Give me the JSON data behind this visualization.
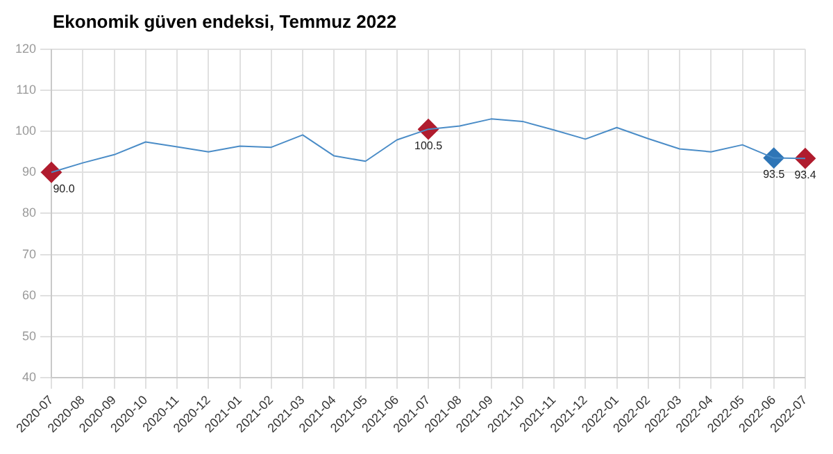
{
  "chart_data": {
    "type": "line",
    "title": "Ekonomik güven endeksi, Temmuz 2022",
    "categories": [
      "2020-07",
      "2020-08",
      "2020-09",
      "2020-10",
      "2020-11",
      "2020-12",
      "2021-01",
      "2021-02",
      "2021-03",
      "2021-04",
      "2021-05",
      "2021-06",
      "2021-07",
      "2021-08",
      "2021-09",
      "2021-10",
      "2021-11",
      "2021-12",
      "2022-01",
      "2022-02",
      "2022-03",
      "2022-04",
      "2022-05",
      "2022-06",
      "2022-07"
    ],
    "series": [
      {
        "color": "#4a8cc7",
        "marker": "none",
        "values": [
          90.0,
          92.3,
          94.3,
          97.4,
          96.2,
          95.0,
          96.4,
          96.1,
          99.1,
          94.0,
          92.7,
          97.9,
          100.5,
          101.3,
          103.0,
          102.4,
          100.3,
          98.1,
          100.9,
          98.2,
          95.7,
          95.0,
          96.7,
          93.5,
          93.4
        ]
      },
      {
        "type": "scatter",
        "marker": "diamond",
        "color": "#b01c2e",
        "values": [
          90.0,
          null,
          null,
          null,
          null,
          null,
          null,
          null,
          null,
          null,
          null,
          null,
          100.5,
          null,
          null,
          null,
          null,
          null,
          null,
          null,
          null,
          null,
          null,
          93.5,
          93.4
        ],
        "colors": [
          "#b01c2e",
          null,
          null,
          null,
          null,
          null,
          null,
          null,
          null,
          null,
          null,
          null,
          "#b01c2e",
          null,
          null,
          null,
          null,
          null,
          null,
          null,
          null,
          null,
          null,
          "#2e75b6",
          "#b01c2e"
        ],
        "value_labels": [
          "90.0",
          null,
          null,
          null,
          null,
          null,
          null,
          null,
          null,
          null,
          null,
          null,
          "100.5",
          null,
          null,
          null,
          null,
          null,
          null,
          null,
          null,
          null,
          null,
          "93.5",
          "93.4"
        ]
      }
    ],
    "ylim": [
      40,
      120
    ],
    "yticks": [
      40,
      50,
      60,
      70,
      80,
      90,
      100,
      110,
      120
    ],
    "grid": true,
    "legend": false
  }
}
